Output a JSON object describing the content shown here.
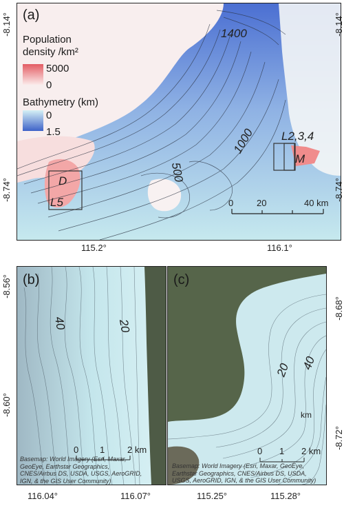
{
  "panel_a": {
    "label": "(a)",
    "legend": {
      "population_title_line1": "Population",
      "population_title_line2": "density /km²",
      "population_max": "5000",
      "population_min": "0",
      "bathy_title": "Bathymetry (km)",
      "bathy_min": "0",
      "bathy_max": "1.5"
    },
    "contour_labels": [
      "1400",
      "1000",
      "500"
    ],
    "site_labels": {
      "d": "D",
      "l5": "L5",
      "l234": "L2,3,4",
      "m": "M"
    },
    "scale": {
      "t0": "0",
      "t1": "20",
      "t2": "40 km"
    },
    "lat_ticks": [
      "-8.14°",
      "-8.74°"
    ],
    "lon_ticks": [
      "115.2°",
      "116.1°"
    ]
  },
  "panel_b": {
    "label": "(b)",
    "contour_labels": [
      "40",
      "20"
    ],
    "scale": {
      "t0": "0",
      "t1": "1",
      "t2": "2 km"
    },
    "credit": [
      "Basemap: World Imagery (Esri, Maxar,",
      "GeoEye, Earthstar Geographics,",
      "CNES/Airbus DS, USDA, USGS, AeroGRID,",
      "IGN, & the GIS User Community)"
    ],
    "lat_ticks": [
      "-8.56°",
      "-8.60°"
    ],
    "lon_ticks": [
      "116.04°",
      "116.07°"
    ]
  },
  "panel_c": {
    "label": "(c)",
    "contour_labels": [
      "20",
      "40"
    ],
    "km_label": "km",
    "scale": {
      "t0": "0",
      "t1": "1",
      "t2": "2 km"
    },
    "credit": [
      "Basemap: World Imagery (Esri, Maxar, GeoEye,",
      "Earthstar Geographics, CNES/Airbus DS, USDA,",
      "USGS, AeroGRID, IGN, & the GIS User Community)"
    ],
    "lat_ticks": [
      "-8.68°",
      "-8.72°"
    ],
    "lon_ticks": [
      "115.25°",
      "115.28°"
    ]
  },
  "colors": {
    "deep_sea": "#5a7fd6",
    "shallow_sea": "#bfe6ec",
    "land_low": "#f6e6e6",
    "land_high": "#f2a0a0",
    "satellite": "#4a5a3c"
  }
}
